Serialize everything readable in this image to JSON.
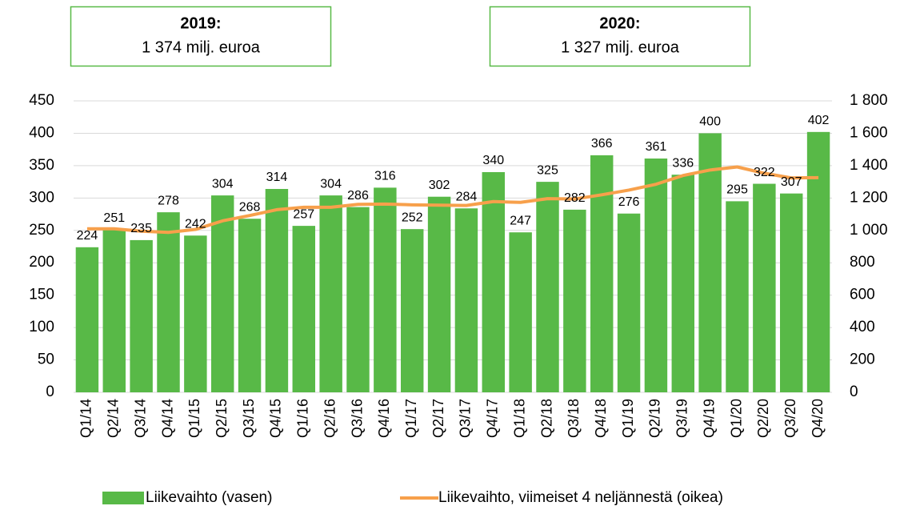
{
  "chart_data": {
    "type": "bar_line",
    "annotations": [
      {
        "title": "2019:",
        "text": "1 374 milj. euroa"
      },
      {
        "title": "2020:",
        "text": "1 327 milj. euroa"
      }
    ],
    "categories": [
      "Q1/14",
      "Q2/14",
      "Q3/14",
      "Q4/14",
      "Q1/15",
      "Q2/15",
      "Q3/15",
      "Q4/15",
      "Q1/16",
      "Q2/16",
      "Q3/16",
      "Q4/16",
      "Q1/17",
      "Q2/17",
      "Q3/17",
      "Q4/17",
      "Q1/18",
      "Q2/18",
      "Q3/18",
      "Q4/18",
      "Q1/19",
      "Q2/19",
      "Q3/19",
      "Q4/19",
      "Q1/20",
      "Q2/20",
      "Q3/20",
      "Q4/20"
    ],
    "series": [
      {
        "name": "Liikevaihto (vasen)",
        "type": "bar",
        "color": "#58b947",
        "show_labels": true,
        "values": [
          224,
          251,
          235,
          278,
          242,
          304,
          268,
          314,
          257,
          304,
          286,
          316,
          252,
          302,
          284,
          340,
          247,
          325,
          282,
          366,
          276,
          361,
          336,
          400,
          295,
          322,
          307,
          402
        ]
      },
      {
        "name": "Liikevaihto, viimeiset 4 neljännestä (oikea)",
        "type": "line",
        "axis": "y2",
        "color": "#f7a04b",
        "values": [
          1010,
          1010,
          995,
          988,
          1006,
          1059,
          1092,
          1128,
          1143,
          1143,
          1161,
          1163,
          1158,
          1156,
          1154,
          1178,
          1173,
          1196,
          1194,
          1220,
          1249,
          1285,
          1339,
          1373,
          1392,
          1353,
          1324,
          1326
        ]
      }
    ],
    "ylim": [
      0,
      450
    ],
    "yticks": [
      0,
      50,
      100,
      150,
      200,
      250,
      300,
      350,
      400,
      450
    ],
    "y2lim": [
      0,
      1800
    ],
    "y2ticks": [
      0,
      200,
      400,
      600,
      800,
      {
        "value": 1000,
        "label": "1 000"
      },
      {
        "value": 1200,
        "label": "1 200"
      },
      {
        "value": 1400,
        "label": "1 400"
      },
      {
        "value": 1600,
        "label": "1 600"
      },
      {
        "value": 1800,
        "label": "1 800"
      }
    ],
    "grid": true,
    "legend": "bottom"
  }
}
